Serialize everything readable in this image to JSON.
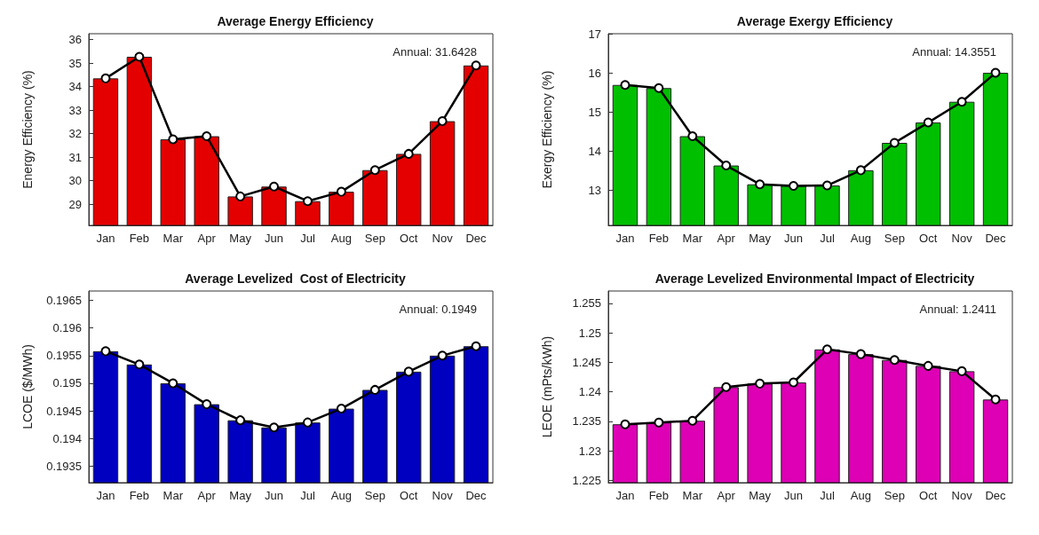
{
  "chart_data": [
    {
      "type": "bar",
      "title": "Average Energy Efficiency",
      "ylabel": "Energy Efficiency (%)",
      "categories": [
        "Jan",
        "Feb",
        "Mar",
        "Apr",
        "May",
        "Jun",
        "Jul",
        "Aug",
        "Sep",
        "Oct",
        "Nov",
        "Dec"
      ],
      "series": [
        {
          "color": "#e50000",
          "values": [
            34.35,
            35.27,
            31.76,
            31.89,
            29.33,
            29.75,
            29.13,
            29.53,
            30.45,
            31.14,
            32.53,
            34.9
          ]
        },
        {
          "type": "line",
          "color": "#000000",
          "values": [
            34.35,
            35.27,
            31.76,
            31.89,
            29.33,
            29.75,
            29.13,
            29.53,
            30.45,
            31.14,
            32.53,
            34.9
          ]
        }
      ],
      "marker": "circle",
      "ylim": [
        28.1,
        36.25
      ],
      "yticks": [
        29,
        30,
        31,
        32,
        33,
        34,
        35,
        36
      ],
      "annotations": [
        "Annual: 31.6428"
      ]
    },
    {
      "type": "bar",
      "title": "Average Exergy Efficiency",
      "ylabel": "Exergy Efficiency (%)",
      "categories": [
        "Jan",
        "Feb",
        "Mar",
        "Apr",
        "May",
        "Jun",
        "Jul",
        "Aug",
        "Sep",
        "Oct",
        "Nov",
        "Dec"
      ],
      "series": [
        {
          "color": "#00bf00",
          "values": [
            15.69,
            15.61,
            14.38,
            13.63,
            13.15,
            13.11,
            13.12,
            13.51,
            14.21,
            14.73,
            15.26,
            16.0
          ]
        },
        {
          "type": "line",
          "color": "#000000",
          "values": [
            15.69,
            15.61,
            14.38,
            13.63,
            13.15,
            13.11,
            13.12,
            13.51,
            14.21,
            14.73,
            15.26,
            16.0
          ]
        }
      ],
      "marker": "circle",
      "ylim": [
        12.1,
        17
      ],
      "yticks": [
        13,
        14,
        15,
        16,
        17
      ],
      "annotations": [
        "Annual: 14.3551"
      ]
    },
    {
      "type": "bar",
      "title": "Average Levelized  Cost of Electricity",
      "ylabel": "LCOE ($/MWh)",
      "categories": [
        "Jan",
        "Feb",
        "Mar",
        "Apr",
        "May",
        "Jun",
        "Jul",
        "Aug",
        "Sep",
        "Oct",
        "Nov",
        "Dec"
      ],
      "series": [
        {
          "color": "#0000c0",
          "values": [
            0.19558,
            0.19534,
            0.195,
            0.19462,
            0.19433,
            0.1942,
            0.19429,
            0.19454,
            0.19488,
            0.19521,
            0.1955,
            0.19567
          ]
        },
        {
          "type": "line",
          "color": "#000000",
          "values": [
            0.19558,
            0.19534,
            0.195,
            0.19462,
            0.19433,
            0.1942,
            0.19429,
            0.19454,
            0.19488,
            0.19521,
            0.1955,
            0.19567
          ]
        }
      ],
      "marker": "circle",
      "ylim": [
        0.1932,
        0.19667
      ],
      "yticks": [
        0.1935,
        0.194,
        0.1945,
        0.195,
        0.1955,
        0.196,
        0.1965
      ],
      "annotations": [
        "Annual: 0.1949"
      ]
    },
    {
      "type": "bar",
      "title": "Average Levelized Environmental Impact of Electricity",
      "ylabel": "LEOE (mPts/kWh)",
      "categories": [
        "Jan",
        "Feb",
        "Mar",
        "Apr",
        "May",
        "Jun",
        "Jul",
        "Aug",
        "Sep",
        "Oct",
        "Nov",
        "Dec"
      ],
      "series": [
        {
          "color": "#dd00b4",
          "values": [
            1.2345,
            1.2348,
            1.2351,
            1.2408,
            1.2414,
            1.2416,
            1.2472,
            1.2464,
            1.2454,
            1.2444,
            1.2435,
            1.2387
          ]
        },
        {
          "type": "line",
          "color": "#000000",
          "values": [
            1.2345,
            1.2348,
            1.2351,
            1.2408,
            1.2414,
            1.2416,
            1.2472,
            1.2464,
            1.2454,
            1.2444,
            1.2435,
            1.2387
          ]
        }
      ],
      "marker": "circle",
      "ylim": [
        1.2246,
        1.2571
      ],
      "yticks": [
        1.225,
        1.23,
        1.235,
        1.24,
        1.245,
        1.25,
        1.255
      ],
      "annotations": [
        "Annual: 1.2411"
      ]
    }
  ]
}
